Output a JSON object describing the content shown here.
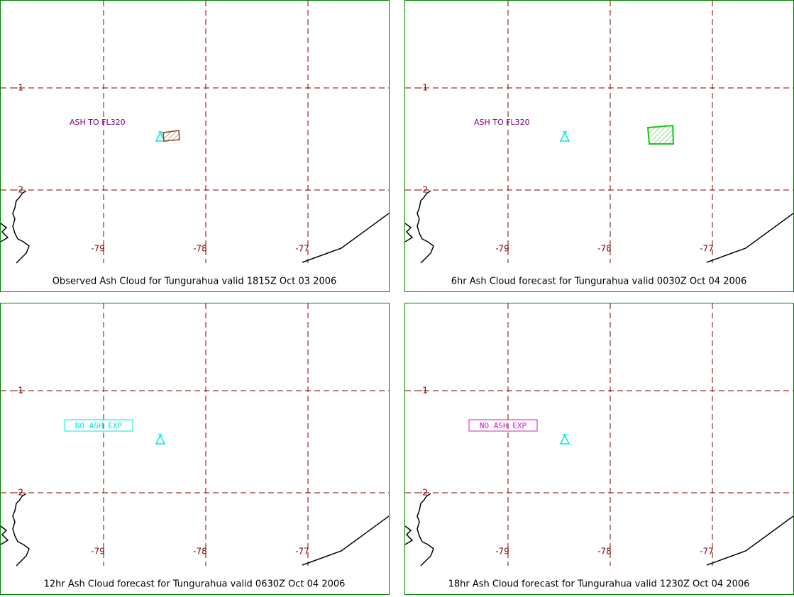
{
  "panels": [
    {
      "caption": "Observed Ash Cloud for Tungurahua valid 1815Z Oct 03 2006",
      "annotation": {
        "text": "ASH TO FL320",
        "color": "#800080",
        "boxed": false
      },
      "lat_labels": [
        "-1",
        "-2"
      ],
      "lon_labels": [
        "-79",
        "-78",
        "-77"
      ]
    },
    {
      "caption": "6hr Ash Cloud forecast for Tungurahua valid 0030Z Oct 04 2006",
      "annotation": {
        "text": "ASH TO FL320",
        "color": "#800080",
        "boxed": false
      },
      "lat_labels": [
        "-1",
        "-2"
      ],
      "lon_labels": [
        "-79",
        "-78",
        "-77"
      ]
    },
    {
      "caption": "12hr Ash Cloud forecast for Tungurahua valid 0630Z Oct 04 2006",
      "annotation": {
        "text": "NO ASH EXP",
        "color": "#00e5e5",
        "boxed": true
      },
      "lat_labels": [
        "-1",
        "-2"
      ],
      "lon_labels": [
        "-79",
        "-78",
        "-77"
      ]
    },
    {
      "caption": "18hr Ash Cloud forecast for Tungurahua valid 1230Z Oct 04 2006",
      "annotation": {
        "text": "NO ASH EXP",
        "color": "#d020c0",
        "boxed": true
      },
      "lat_labels": [
        "-1",
        "-2"
      ],
      "lon_labels": [
        "-79",
        "-78",
        "-77"
      ]
    }
  ]
}
